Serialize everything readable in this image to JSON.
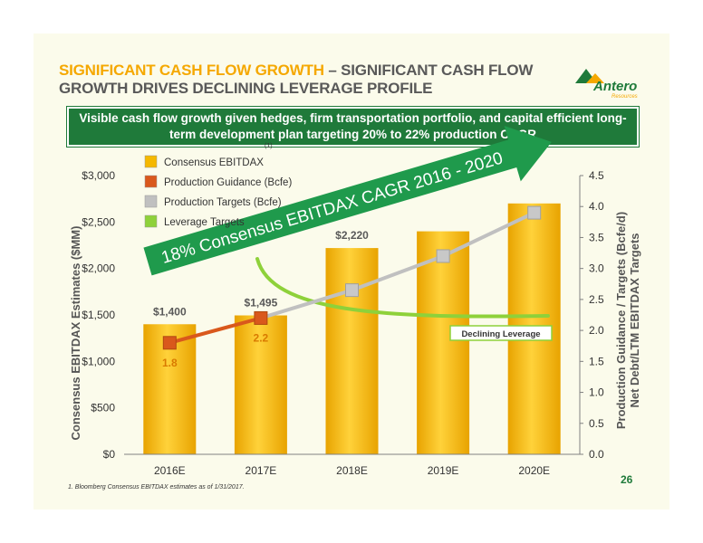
{
  "header": {
    "title_accent": "SIGNIFICANT CASH FLOW GROWTH",
    "title_rest": " – SIGNIFICANT CASH FLOW GROWTH DRIVES DECLINING LEVERAGE PROFILE",
    "logo_text": "Antero",
    "logo_subtext": "Resources"
  },
  "banner": {
    "text": "Visible cash flow growth given hedges, firm transportation portfolio, and capital efficient long-term development plan targeting 20% to 22% production CAGR"
  },
  "colors": {
    "bar": "#f5b800",
    "guidance": "#d9581c",
    "targets": "#c0c0c0",
    "leverage": "#8ed13a",
    "arrow": "#1f9a4c",
    "green_text": "#1f7a3a"
  },
  "chart_data": {
    "type": "bar",
    "categories": [
      "2016E",
      "2017E",
      "2018E",
      "2019E",
      "2020E"
    ],
    "series": [
      {
        "name": "Consensus EBITDAX",
        "axis": "left",
        "kind": "bar",
        "values": [
          1400,
          1495,
          2220,
          2400,
          2700
        ]
      },
      {
        "name": "Production Guidance (Bcfe)",
        "axis": "right",
        "kind": "line",
        "x": [
          "2016E",
          "2017E"
        ],
        "values": [
          1.8,
          2.2
        ]
      },
      {
        "name": "Production Targets (Bcfe)",
        "axis": "right",
        "kind": "line",
        "x": [
          "2017E",
          "2018E",
          "2019E",
          "2020E"
        ],
        "values": [
          2.2,
          2.65,
          3.2,
          3.9
        ]
      },
      {
        "name": "Leverage Targets",
        "axis": "right",
        "kind": "curve"
      }
    ],
    "bar_labels": [
      {
        "category": "2016E",
        "text": "$1,400"
      },
      {
        "category": "2017E",
        "text": "$1,495"
      },
      {
        "category": "2018E",
        "text": "$2,220"
      }
    ],
    "point_labels": [
      {
        "category": "2016E",
        "text": "1.8"
      },
      {
        "category": "2017E",
        "text": "2.2"
      }
    ],
    "legend_superscript": "(1)",
    "ylabel": "Consensus EBITDAX Estimates ($MM)",
    "ylabel_right_line1": "Production Guidance / Targets (Bcfe/d)",
    "ylabel_right_line2": "Net Debt/LTM EBITDAX Targets",
    "ylim": [
      0,
      3000
    ],
    "ylim_right": [
      0,
      4.5
    ],
    "yticks": [
      "$0",
      "$500",
      "$1,000",
      "$1,500",
      "$2,000",
      "$2,500",
      "$3,000"
    ],
    "yticks_right": [
      "0.0",
      "0.5",
      "1.0",
      "1.5",
      "2.0",
      "2.5",
      "3.0",
      "3.5",
      "4.0",
      "4.5"
    ],
    "legend_position": "top-left",
    "annotations": {
      "arrow_text": "18% Consensus EBITDAX CAGR 2016 - 2020",
      "leverage_box": "Declining Leverage"
    }
  },
  "footnote": "1.    Bloomberg Consensus EBITDAX estimates as of 1/31/2017.",
  "page_number": "26"
}
